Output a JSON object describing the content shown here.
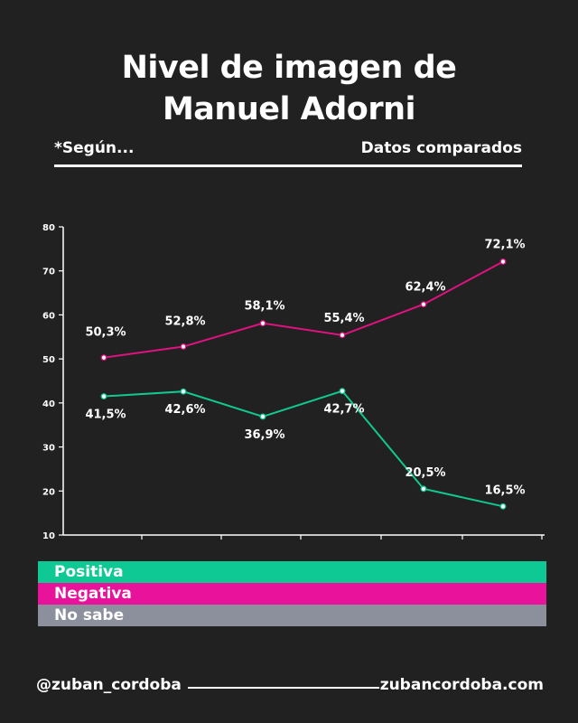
{
  "title_line1": "Nivel de imagen de",
  "title_line2": "Manuel Adorni",
  "subtitle_left": "*Según...",
  "subtitle_right": "Datos comparados",
  "chart_data": {
    "type": "line",
    "x": [
      1,
      2,
      3,
      4,
      5,
      6
    ],
    "ylim": [
      10,
      80
    ],
    "yticks": [
      10,
      20,
      30,
      40,
      50,
      60,
      70,
      80
    ],
    "grid": false,
    "series": [
      {
        "name": "Negativa",
        "color": "#e0127f",
        "values": [
          50.3,
          52.8,
          58.1,
          55.4,
          62.4,
          72.1
        ],
        "labels": [
          "50,3%",
          "52,8%",
          "58,1%",
          "55,4%",
          "62,4%",
          "72,1%"
        ]
      },
      {
        "name": "Positiva",
        "color": "#10c98f",
        "values": [
          41.5,
          42.6,
          36.9,
          42.7,
          20.5,
          16.5
        ],
        "labels": [
          "41,5%",
          "42,6%",
          "36,9%",
          "42,7%",
          "20,5%",
          "16,5%"
        ]
      }
    ]
  },
  "legend": [
    {
      "label": "Positiva",
      "color": "#0fc994"
    },
    {
      "label": "Negativa",
      "color": "#e8139a"
    },
    {
      "label": "No sabe",
      "color": "#8c8f9c"
    }
  ],
  "footer": {
    "handle": "@zuban_cordoba",
    "website": "zubancordoba.com"
  }
}
